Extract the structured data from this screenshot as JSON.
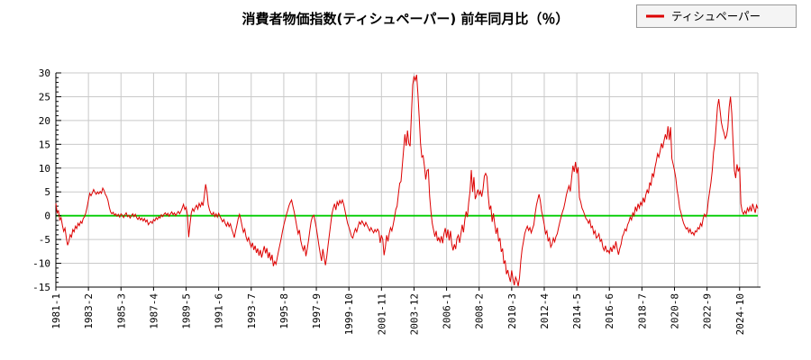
{
  "title": "消費者物価指数(ティシュペーパー) 前年同月比（％）",
  "legend": {
    "label": "ティシュペーパー",
    "line_color": "#dd0000",
    "box_bg": "#f4f4f4",
    "box_border": "#999999"
  },
  "colors": {
    "series_line": "#dd0000",
    "zero_line": "#00cc00",
    "grid": "#c9c9c9",
    "axis": "#000000",
    "text": "#000000",
    "plot_bg": "#ffffff"
  },
  "chart_data": {
    "type": "line",
    "series_name": "ティシュペーパー",
    "unit": "%",
    "start": "1981-01",
    "frequency": "monthly",
    "title": "消費者物価指数(ティシュペーパー) 前年同月比（％）",
    "xlabel": "",
    "ylabel": "",
    "ylim": [
      -15,
      30
    ],
    "ytick_step": 5,
    "ytick_labels": [
      "30",
      "25",
      "20",
      "15",
      "10",
      "5",
      "0",
      "-5",
      "-10",
      "-15"
    ],
    "x_tick_month_interval": 25,
    "x_tick_labels": [
      "1981-1",
      "1983-2",
      "1985-3",
      "1987-4",
      "1989-5",
      "1991-6",
      "1993-7",
      "1995-8",
      "1997-9",
      "1999-10",
      "2001-11",
      "2003-12",
      "2006-1",
      "2008-2",
      "2010-3",
      "2012-4",
      "2014-5",
      "2016-6",
      "2018-7",
      "2020-8",
      "2022-9",
      "2024-10"
    ],
    "grid": true,
    "legend_position": "top-right",
    "zero_line": true,
    "values": [
      2.6,
      0.6,
      1.0,
      -0.9,
      -0.4,
      -2.0,
      -3.3,
      -2.6,
      -4.6,
      -6.2,
      -5.4,
      -4.0,
      -4.5,
      -2.9,
      -3.4,
      -2.2,
      -2.7,
      -1.6,
      -2.1,
      -1.2,
      -1.6,
      -0.6,
      -0.2,
      0.6,
      1.8,
      3.3,
      4.7,
      4.2,
      4.8,
      5.5,
      4.9,
      4.5,
      5.0,
      4.6,
      5.1,
      4.7,
      5.8,
      5.3,
      4.5,
      4.0,
      3.2,
      1.8,
      0.8,
      0.4,
      0.7,
      0.1,
      0.4,
      -0.1,
      0.3,
      -0.3,
      0.4,
      0.1,
      -0.4,
      0.2,
      0.6,
      -0.2,
      0.1,
      -0.5,
      0.0,
      0.4,
      -0.2,
      0.3,
      -0.4,
      -0.8,
      -0.3,
      -0.9,
      -0.5,
      -1.1,
      -0.6,
      -1.3,
      -0.9,
      -1.9,
      -1.5,
      -1.2,
      -1.6,
      -0.8,
      -1.1,
      -0.4,
      -0.8,
      -0.2,
      -0.5,
      0.2,
      -0.2,
      0.3,
      0.6,
      0.1,
      0.5,
      -0.1,
      0.4,
      0.8,
      0.2,
      0.6,
      0.0,
      0.5,
      0.9,
      0.4,
      0.9,
      1.6,
      2.4,
      1.3,
      1.8,
      0.2,
      -4.5,
      -1.8,
      0.6,
      1.5,
      0.9,
      1.7,
      2.2,
      1.4,
      2.6,
      1.9,
      2.8,
      2.1,
      4.2,
      6.6,
      5.0,
      2.3,
      1.2,
      0.5,
      0.2,
      0.7,
      -0.2,
      0.4,
      -0.3,
      0.5,
      -0.1,
      -0.7,
      -1.3,
      -0.8,
      -1.6,
      -2.2,
      -1.4,
      -2.3,
      -1.7,
      -2.8,
      -3.6,
      -4.6,
      -3.2,
      -2.0,
      -0.6,
      0.3,
      -0.8,
      -2.2,
      -3.5,
      -2.8,
      -4.4,
      -5.3,
      -4.6,
      -5.8,
      -6.6,
      -5.7,
      -7.2,
      -6.3,
      -7.8,
      -6.9,
      -8.4,
      -7.2,
      -8.8,
      -7.6,
      -6.4,
      -7.9,
      -6.8,
      -8.9,
      -7.7,
      -9.4,
      -8.2,
      -10.6,
      -9.6,
      -10.2,
      -8.8,
      -7.4,
      -6.1,
      -4.8,
      -3.3,
      -2.0,
      -0.9,
      0.2,
      1.1,
      2.1,
      2.8,
      3.3,
      2.0,
      0.8,
      -0.7,
      -2.3,
      -3.8,
      -3.0,
      -5.2,
      -6.4,
      -7.3,
      -6.2,
      -8.5,
      -7.0,
      -5.2,
      -3.1,
      -1.2,
      -0.2,
      0.1,
      -1.1,
      -2.6,
      -4.4,
      -6.3,
      -8.0,
      -9.5,
      -7.0,
      -8.8,
      -10.4,
      -8.6,
      -6.2,
      -4.0,
      -1.8,
      0.4,
      1.6,
      2.5,
      1.2,
      2.9,
      2.2,
      3.2,
      2.6,
      3.3,
      2.4,
      1.1,
      -0.3,
      -1.6,
      -2.4,
      -3.3,
      -4.4,
      -4.7,
      -3.6,
      -2.7,
      -3.4,
      -2.3,
      -1.3,
      -1.8,
      -1.1,
      -1.6,
      -2.2,
      -1.4,
      -2.0,
      -2.6,
      -3.2,
      -2.5,
      -3.1,
      -3.6,
      -2.9,
      -3.4,
      -2.8,
      -3.3,
      -5.7,
      -4.1,
      -5.0,
      -8.3,
      -6.6,
      -4.1,
      -5.4,
      -3.7,
      -2.5,
      -3.2,
      -1.9,
      -0.4,
      1.3,
      2.0,
      4.5,
      6.8,
      7.2,
      10.5,
      13.8,
      17.1,
      14.7,
      17.9,
      15.2,
      14.6,
      21.2,
      27.5,
      29.3,
      28.4,
      29.6,
      25.6,
      20.6,
      15.2,
      12.3,
      12.6,
      10.4,
      7.6,
      9.5,
      9.7,
      4.1,
      0.9,
      -1.6,
      -3.0,
      -4.4,
      -3.2,
      -5.3,
      -4.6,
      -5.5,
      -4.3,
      -5.8,
      -3.8,
      -2.6,
      -4.6,
      -2.9,
      -5.2,
      -3.2,
      -6.0,
      -7.3,
      -6.0,
      -7.0,
      -4.7,
      -4.1,
      -5.7,
      -3.8,
      -1.9,
      -3.5,
      -0.9,
      0.9,
      -0.3,
      2.8,
      5.1,
      9.6,
      5.0,
      8.1,
      3.5,
      4.3,
      5.5,
      4.4,
      5.2,
      4.0,
      5.6,
      8.3,
      8.9,
      8.2,
      4.2,
      1.3,
      2.1,
      -1.3,
      0.5,
      -1.8,
      -3.8,
      -2.5,
      -5.4,
      -4.7,
      -7.6,
      -6.9,
      -10.1,
      -9.4,
      -12.3,
      -11.4,
      -12.8,
      -13.9,
      -11.5,
      -13.3,
      -14.6,
      -12.9,
      -13.6,
      -14.8,
      -13.0,
      -9.5,
      -7.0,
      -5.5,
      -3.8,
      -2.9,
      -2.2,
      -3.1,
      -2.5,
      -3.6,
      -2.7,
      -1.9,
      0.4,
      2.2,
      3.4,
      4.5,
      3.1,
      0.9,
      -0.4,
      -1.9,
      -3.8,
      -3.2,
      -5.4,
      -4.7,
      -6.6,
      -6.0,
      -4.7,
      -5.5,
      -4.4,
      -3.8,
      -2.5,
      -1.3,
      -0.2,
      0.8,
      1.6,
      2.9,
      4.4,
      5.4,
      6.3,
      5.1,
      7.9,
      10.5,
      9.2,
      11.3,
      8.9,
      10.2,
      3.8,
      2.9,
      1.6,
      1.0,
      0.2,
      -0.6,
      -0.9,
      -1.6,
      -0.9,
      -2.5,
      -2.2,
      -3.8,
      -3.2,
      -4.7,
      -4.4,
      -3.8,
      -5.4,
      -5.0,
      -6.6,
      -7.3,
      -6.3,
      -7.6,
      -7.3,
      -7.9,
      -6.6,
      -7.6,
      -6.3,
      -6.9,
      -5.4,
      -6.9,
      -8.2,
      -6.9,
      -6.0,
      -4.4,
      -3.8,
      -2.8,
      -3.2,
      -1.9,
      -1.3,
      -0.3,
      -0.9,
      0.6,
      0.0,
      1.9,
      0.9,
      2.5,
      1.6,
      2.8,
      2.2,
      3.8,
      2.8,
      4.4,
      5.4,
      4.7,
      7.0,
      6.3,
      8.9,
      8.2,
      10.1,
      11.4,
      13.0,
      12.3,
      13.6,
      15.2,
      14.2,
      15.8,
      17.1,
      16.0,
      18.8,
      15.9,
      18.6,
      12.0,
      10.8,
      9.5,
      7.9,
      5.4,
      3.8,
      1.6,
      0.6,
      -0.6,
      -1.6,
      -2.2,
      -2.8,
      -2.5,
      -3.5,
      -2.8,
      -3.8,
      -3.5,
      -4.1,
      -3.2,
      -3.4,
      -2.5,
      -2.8,
      -1.6,
      -2.2,
      -0.6,
      0.3,
      -0.2,
      0.6,
      3.2,
      5.1,
      7.0,
      9.5,
      13.3,
      15.2,
      18.9,
      22.8,
      24.5,
      22.1,
      19.6,
      18.3,
      17.4,
      16.2,
      16.8,
      18.6,
      22.8,
      25.0,
      21.5,
      15.2,
      9.5,
      7.9,
      10.8,
      9.3,
      10.2,
      2.5,
      0.9,
      0.3,
      1.0,
      0.4,
      1.6,
      0.9,
      1.9,
      0.9,
      2.5,
      1.6,
      0.6,
      2.2,
      1.5
    ]
  }
}
